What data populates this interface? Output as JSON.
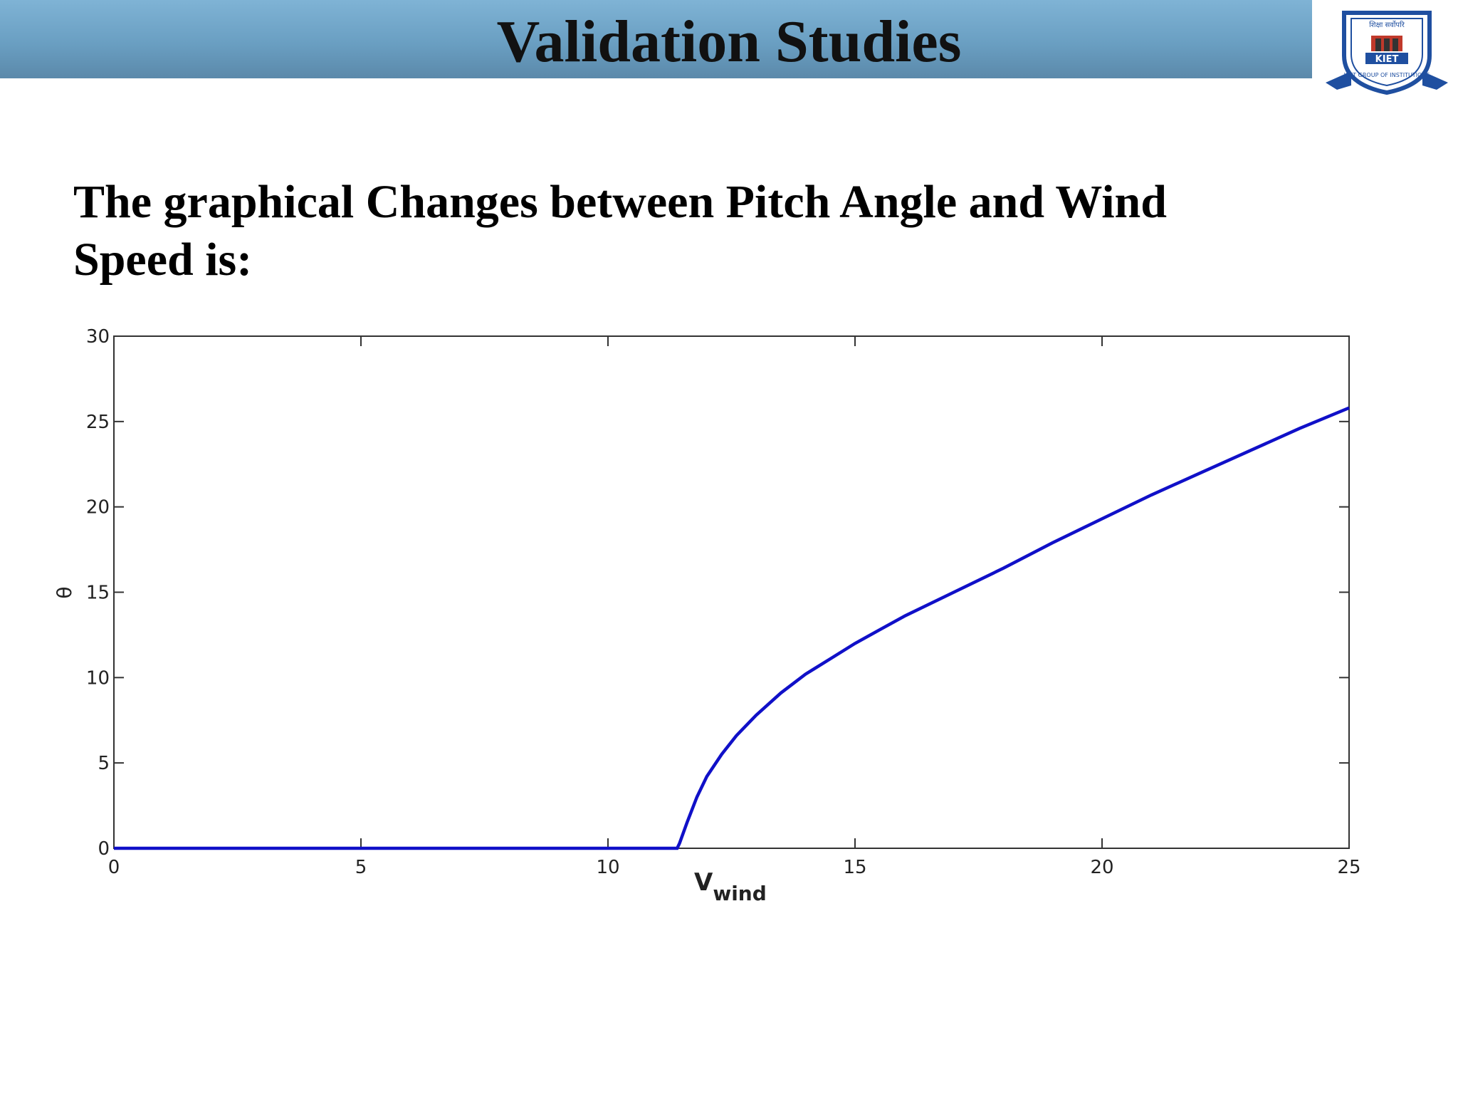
{
  "slide": {
    "title": "Validation Studies",
    "subtitle": "The graphical Changes between Pitch Angle and Wind Speed is:"
  },
  "logo": {
    "text_top": "शिक्षा सर्वोपरि",
    "text_ring": "KIET GROUP OF INSTITUTIONS",
    "text_center": "KIET"
  },
  "colors": {
    "title_bar": "#6a9fc2",
    "series": "#1010c8",
    "logo_blue": "#1f4fa0",
    "logo_red": "#c0392b"
  },
  "chart_data": {
    "type": "line",
    "xlabel": "V",
    "xlabel_sub": "wind",
    "ylabel": "θ",
    "xlim": [
      0,
      25
    ],
    "ylim": [
      0,
      30
    ],
    "xticks": [
      0,
      5,
      10,
      15,
      20,
      25
    ],
    "yticks": [
      0,
      5,
      10,
      15,
      20,
      25,
      30
    ],
    "grid": false,
    "series": [
      {
        "x": [
          0,
          11.4,
          11.45,
          11.6,
          11.8,
          12.0,
          12.3,
          12.6,
          13.0,
          13.5,
          14.0,
          14.5,
          15.0,
          15.5,
          16.0,
          17.0,
          18.0,
          19.0,
          20.0,
          21.0,
          22.0,
          23.0,
          24.0,
          25.0
        ],
        "y": [
          0,
          0,
          0.3,
          1.5,
          3.0,
          4.2,
          5.5,
          6.6,
          7.8,
          9.1,
          10.2,
          11.1,
          12.0,
          12.8,
          13.6,
          15.0,
          16.4,
          17.9,
          19.3,
          20.7,
          22.0,
          23.3,
          24.6,
          25.8
        ]
      }
    ]
  }
}
